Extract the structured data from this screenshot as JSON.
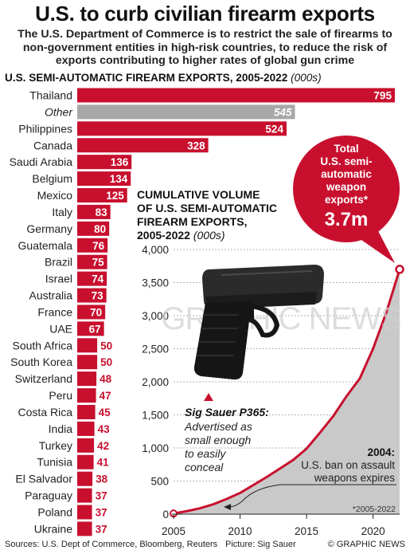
{
  "title": "U.S. to curb civilian firearm exports",
  "subtitle": "The U.S. Department of Commerce is to restrict the sale of firearms to non-government entities in high-risk countries, to reduce the risk of exports contributing to higher rates of global gun crime",
  "section_title": "U.S. SEMI-AUTOMATIC FIREARM EXPORTS, 2005-2022",
  "section_unit": "(000s)",
  "colors": {
    "accent": "#c8102e",
    "other_bar": "#a8a8a8",
    "area_fill": "#c9c9c9"
  },
  "chart_data": [
    {
      "type": "bar",
      "orientation": "horizontal",
      "categories": [
        "Thailand",
        "Other",
        "Philippines",
        "Canada",
        "Saudi Arabia",
        "Belgium",
        "Mexico",
        "Italy",
        "Germany",
        "Guatemala",
        "Brazil",
        "Israel",
        "Australia",
        "France",
        "UAE",
        "South Africa",
        "South Korea",
        "Switzerland",
        "Peru",
        "Costa Rica",
        "India",
        "Turkey",
        "Tunisia",
        "El Salvador",
        "Paraguay",
        "Poland",
        "Ukraine"
      ],
      "values": [
        795,
        545,
        524,
        328,
        136,
        134,
        125,
        83,
        80,
        76,
        75,
        74,
        73,
        70,
        67,
        50,
        50,
        48,
        47,
        45,
        43,
        42,
        41,
        38,
        37,
        37,
        37
      ],
      "xlim": [
        0,
        815
      ]
    },
    {
      "type": "area",
      "title": "CUMULATIVE VOLUME OF U.S. SEMI-AUTOMATIC FIREARM EXPORTS, 2005-2022",
      "title_lines": [
        "CUMULATIVE VOLUME",
        "OF U.S. SEMI-AUTOMATIC",
        "FIREARM EXPORTS,",
        "2005-2022"
      ],
      "unit": "(000s)",
      "x": [
        2005,
        2006,
        2007,
        2008,
        2009,
        2010,
        2011,
        2012,
        2013,
        2014,
        2015,
        2016,
        2017,
        2018,
        2019,
        2020,
        2021,
        2022
      ],
      "values": [
        10,
        45,
        90,
        150,
        230,
        320,
        440,
        560,
        690,
        820,
        990,
        1230,
        1480,
        1780,
        2050,
        2500,
        3050,
        3700
      ],
      "xlim": [
        2005,
        2022
      ],
      "ylim": [
        0,
        4000
      ],
      "xticks": [
        2005,
        2010,
        2015,
        2020
      ],
      "yticks": [
        "0",
        "500",
        "1,000",
        "1,500",
        "2,000",
        "2,500",
        "3,000",
        "3,500",
        "4,000"
      ],
      "ytick_values": [
        0,
        500,
        1000,
        1500,
        2000,
        2500,
        3000,
        3500,
        4000
      ],
      "footnote": "*2005-2022",
      "total_lines": [
        "Total",
        "U.S. semi-",
        "automatic",
        "weapon",
        "exports*"
      ],
      "total_value": "3.7m",
      "annotation_2004_title": "2004:",
      "annotation_2004_lines": [
        "U.S. ban on assault",
        "weapons expires"
      ],
      "gun_label_title": "Sig Sauer P365:",
      "gun_label_lines": [
        "Advertised as",
        "small enough",
        "to easily",
        "conceal"
      ]
    }
  ],
  "footer": {
    "sources": "Sources: U.S. Dept of Commerce, Bloomberg, Reuters",
    "picture": "Picture: Sig Sauer",
    "credit": "© GRAPHIC NEWS"
  },
  "watermark": "GRAPHIC NEWS"
}
